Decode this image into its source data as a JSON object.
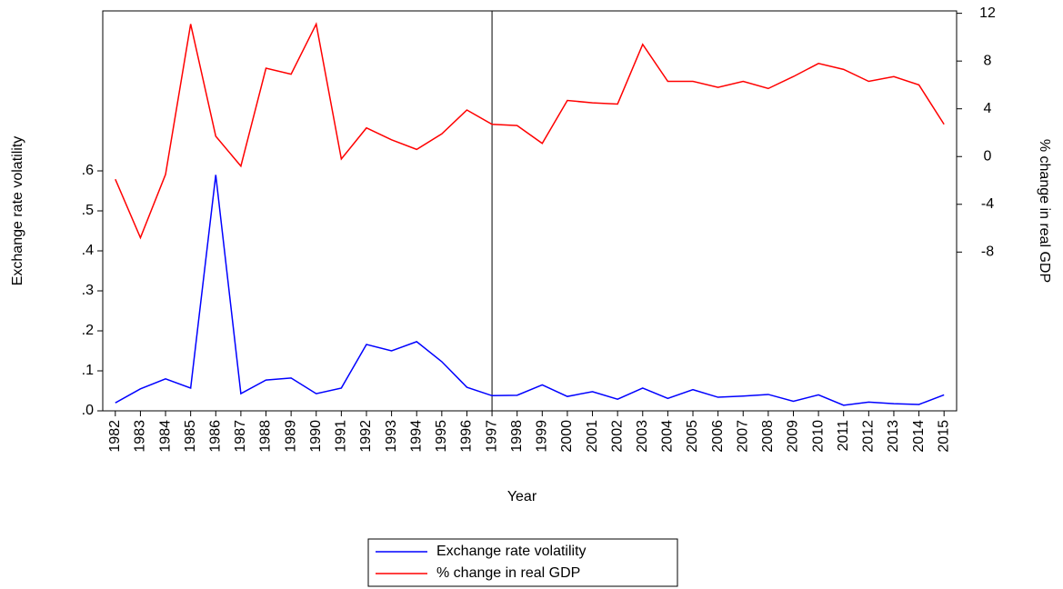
{
  "chart_data": {
    "type": "line",
    "x_label": "Year",
    "y_label": "Exchange rate volatility",
    "y2_label": "% change in real GDP",
    "categories": [
      "1982",
      "1983",
      "1984",
      "1985",
      "1986",
      "1987",
      "1988",
      "1989",
      "1990",
      "1991",
      "1992",
      "1993",
      "1994",
      "1995",
      "1996",
      "1997",
      "1998",
      "1999",
      "2000",
      "2001",
      "2002",
      "2003",
      "2004",
      "2005",
      "2006",
      "2007",
      "2008",
      "2009",
      "2010",
      "2011",
      "2012",
      "2013",
      "2014",
      "2015"
    ],
    "vline": "1997",
    "series": [
      {
        "name": "Exchange rate volatility",
        "color": "#0000ff",
        "axis": "y",
        "values": [
          0.02,
          0.055,
          0.08,
          0.057,
          0.59,
          0.043,
          0.077,
          0.082,
          0.043,
          0.057,
          0.166,
          0.15,
          0.173,
          0.123,
          0.059,
          0.038,
          0.039,
          0.065,
          0.036,
          0.048,
          0.029,
          0.057,
          0.031,
          0.053,
          0.034,
          0.037,
          0.041,
          0.024,
          0.04,
          0.014,
          0.022,
          0.018,
          0.016,
          0.04
        ]
      },
      {
        "name": "% change in real GDP",
        "color": "#ff0000",
        "axis": "y2",
        "values": [
          -1.9,
          -6.8,
          -1.5,
          11.1,
          1.7,
          -0.8,
          7.4,
          6.9,
          11.1,
          -0.2,
          2.4,
          1.4,
          0.6,
          1.9,
          3.9,
          2.7,
          2.6,
          1.1,
          4.7,
          4.5,
          4.4,
          9.4,
          6.3,
          6.3,
          5.8,
          6.3,
          5.7,
          6.7,
          7.8,
          7.3,
          6.3,
          6.7,
          6.0,
          2.7
        ]
      }
    ],
    "ylim": [
      0,
      1.0
    ],
    "yticks": [
      {
        "value": 0,
        "label": ".0"
      },
      {
        "value": 0.1,
        "label": ".1"
      },
      {
        "value": 0.2,
        "label": ".2"
      },
      {
        "value": 0.3,
        "label": ".3"
      },
      {
        "value": 0.4,
        "label": ".4"
      },
      {
        "value": 0.5,
        "label": ".5"
      },
      {
        "value": 0.6,
        "label": ".6"
      }
    ],
    "y2lim": [
      -21.3,
      12.2
    ],
    "y2ticks": [
      -8,
      -4,
      0,
      4,
      8,
      12
    ]
  }
}
